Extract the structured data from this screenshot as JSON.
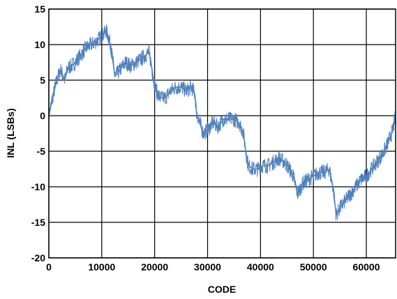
{
  "chart_data": {
    "type": "line",
    "xlabel": "CODE",
    "ylabel": "INL (LSBs)",
    "xlim": [
      0,
      65535
    ],
    "ylim": [
      -20,
      15
    ],
    "x_ticks": [
      0,
      10000,
      20000,
      30000,
      40000,
      50000,
      60000
    ],
    "y_ticks": [
      15,
      10,
      5,
      0,
      -5,
      -10,
      -15,
      -20
    ],
    "x_tick_labels": [
      "0",
      "10000",
      "20000",
      "30000",
      "40000",
      "50000",
      "60000"
    ],
    "y_tick_labels": [
      "15",
      "10",
      "5",
      "0",
      "-5",
      "-10",
      "-15",
      "-20"
    ],
    "grid": true,
    "line_color": "#4f81bd",
    "series": [
      {
        "x": [
          0,
          700,
          1500,
          2200,
          3000,
          3600,
          4300,
          5000,
          6000,
          7000,
          8000,
          9000,
          9700,
          10400,
          10800,
          11300,
          11700,
          12500,
          13500,
          14500,
          15500,
          16500,
          17500,
          18300,
          18900,
          19300,
          19700,
          20300,
          21000,
          22000,
          23000,
          24000,
          25000,
          26000,
          27000,
          27600,
          27900,
          28500,
          29200,
          30000,
          31000,
          32000,
          33000,
          34000,
          35000,
          36000,
          36800,
          37200,
          37700,
          38500,
          39500,
          40500,
          41500,
          42500,
          43500,
          44500,
          45500,
          46200,
          47000,
          48000,
          49000,
          50000,
          51000,
          52000,
          53000,
          53800,
          54300,
          55000,
          56000,
          57000,
          58000,
          59000,
          60000,
          61000,
          62000,
          63000,
          64000,
          65000,
          65535
        ],
        "y": [
          0,
          2.5,
          5,
          6.5,
          5,
          6.8,
          7,
          7.5,
          8.5,
          9.5,
          10,
          10.5,
          11,
          11.5,
          12,
          11,
          9.8,
          5.5,
          6.5,
          7.5,
          7,
          7.5,
          8,
          8.5,
          9,
          7.5,
          5.5,
          3.5,
          2.5,
          2.5,
          3.5,
          4,
          4,
          3.5,
          4,
          3,
          0.5,
          -1,
          -2.5,
          -2,
          -1,
          -1.5,
          -0.5,
          -0.5,
          -0.5,
          -1,
          -2.5,
          -5,
          -7,
          -7.5,
          -7.5,
          -7,
          -7,
          -6.5,
          -6,
          -6.5,
          -7.5,
          -8.5,
          -11,
          -9.5,
          -9,
          -8.5,
          -8,
          -8,
          -7.5,
          -10.5,
          -14,
          -13,
          -12,
          -11,
          -10,
          -9,
          -8.5,
          -7.5,
          -6.5,
          -5.5,
          -4,
          -2,
          0
        ]
      }
    ]
  }
}
